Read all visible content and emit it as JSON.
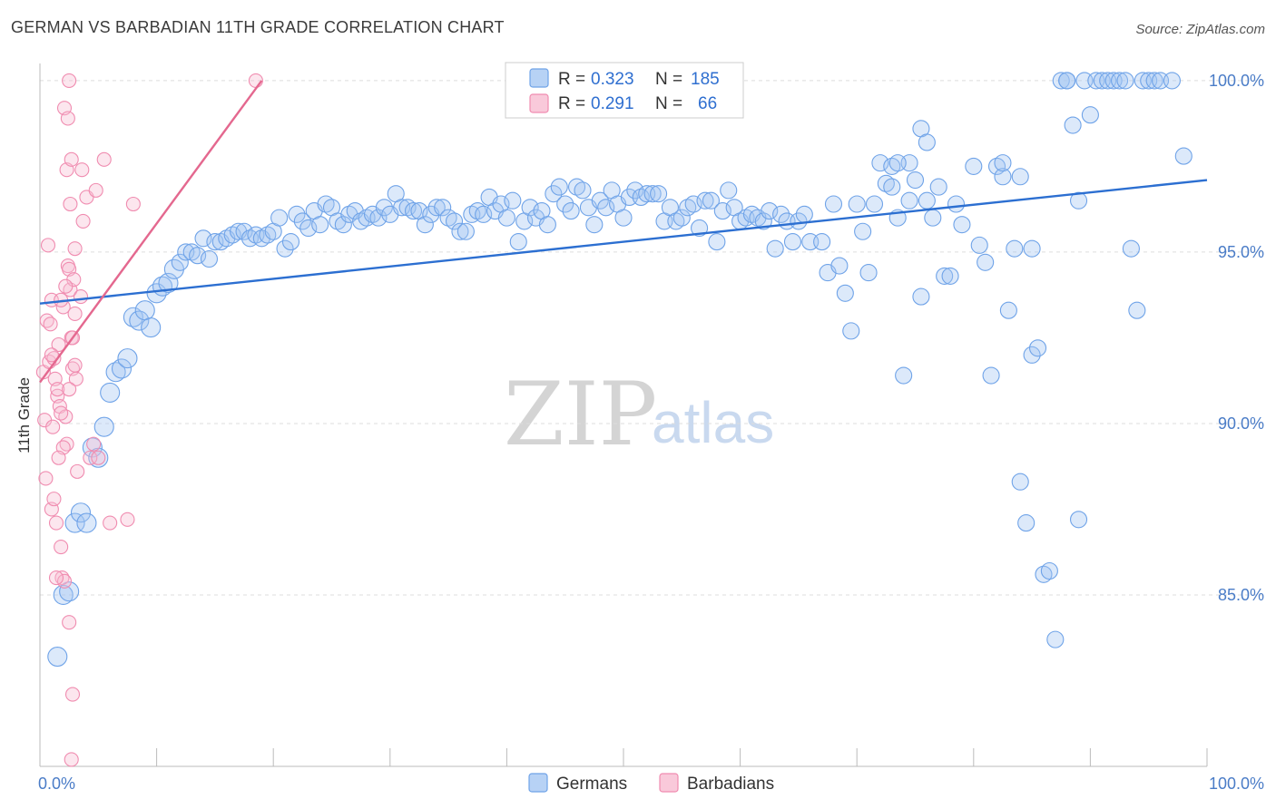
{
  "title": "GERMAN VS BARBADIAN 11TH GRADE CORRELATION CHART",
  "source": "Source: ZipAtlas.com",
  "watermark": {
    "zip": "ZIP",
    "atlas": "atlas"
  },
  "legend_top": [
    {
      "series": "Germans",
      "r_label": "R =",
      "r": "0.323",
      "n_label": "N =",
      "n": "185",
      "color": "#6fa3e8"
    },
    {
      "series": "Barbadians",
      "r_label": "R =",
      "r": "0.291",
      "n_label": "N =",
      "n": "66",
      "color": "#f08cb0"
    }
  ],
  "chart_data": {
    "type": "scatter",
    "title": "GERMAN VS BARBADIAN 11TH GRADE CORRELATION CHART",
    "xlabel": "",
    "ylabel": "11th Grade",
    "xlim": [
      0,
      100
    ],
    "ylim": [
      80.0,
      100.5
    ],
    "x_tick_labels": [
      "0.0%",
      "100.0%"
    ],
    "y_ticks": [
      85.0,
      90.0,
      95.0,
      100.0
    ],
    "y_tick_labels": [
      "85.0%",
      "90.0%",
      "95.0%",
      "100.0%"
    ],
    "grid": "horizontal dashed",
    "legend_position": "top-center",
    "series": [
      {
        "name": "Germans",
        "color": "#6fa3e8",
        "trend": {
          "x": [
            0,
            100
          ],
          "y": [
            93.5,
            97.1
          ]
        },
        "points": [
          [
            1.5,
            83.2
          ],
          [
            2,
            85.0
          ],
          [
            2.5,
            85.1
          ],
          [
            3,
            87.1
          ],
          [
            3.5,
            87.4
          ],
          [
            4,
            87.1
          ],
          [
            4.5,
            89.3
          ],
          [
            5,
            89.0
          ],
          [
            5.5,
            89.9
          ],
          [
            6,
            90.9
          ],
          [
            6.5,
            91.5
          ],
          [
            7,
            91.6
          ],
          [
            7.5,
            91.9
          ],
          [
            8,
            93.1
          ],
          [
            8.5,
            93.0
          ],
          [
            9,
            93.3
          ],
          [
            9.5,
            92.8
          ],
          [
            10,
            93.8
          ],
          [
            10.5,
            94.0
          ],
          [
            11,
            94.1
          ],
          [
            11.5,
            94.5
          ],
          [
            12,
            94.7
          ],
          [
            12.5,
            95.0
          ],
          [
            13,
            95.0
          ],
          [
            13.5,
            94.9
          ],
          [
            14,
            95.4
          ],
          [
            14.5,
            94.8
          ],
          [
            15,
            95.3
          ],
          [
            15.5,
            95.3
          ],
          [
            16,
            95.4
          ],
          [
            16.5,
            95.5
          ],
          [
            17,
            95.6
          ],
          [
            17.5,
            95.6
          ],
          [
            18,
            95.4
          ],
          [
            18.5,
            95.5
          ],
          [
            19,
            95.4
          ],
          [
            19.5,
            95.5
          ],
          [
            20,
            95.6
          ],
          [
            20.5,
            96.0
          ],
          [
            21,
            95.1
          ],
          [
            21.5,
            95.3
          ],
          [
            22,
            96.1
          ],
          [
            22.5,
            95.9
          ],
          [
            23,
            95.7
          ],
          [
            23.5,
            96.2
          ],
          [
            24,
            95.8
          ],
          [
            24.5,
            96.4
          ],
          [
            25,
            96.3
          ],
          [
            25.5,
            95.9
          ],
          [
            26,
            95.8
          ],
          [
            26.5,
            96.1
          ],
          [
            27,
            96.2
          ],
          [
            27.5,
            95.9
          ],
          [
            28,
            96.0
          ],
          [
            28.5,
            96.1
          ],
          [
            29,
            96.0
          ],
          [
            29.5,
            96.3
          ],
          [
            30,
            96.1
          ],
          [
            30.5,
            96.7
          ],
          [
            31,
            96.3
          ],
          [
            31.5,
            96.3
          ],
          [
            32,
            96.2
          ],
          [
            32.5,
            96.2
          ],
          [
            33,
            95.8
          ],
          [
            33.5,
            96.1
          ],
          [
            34,
            96.3
          ],
          [
            34.5,
            96.3
          ],
          [
            35,
            96.0
          ],
          [
            35.5,
            95.9
          ],
          [
            36,
            95.6
          ],
          [
            36.5,
            95.6
          ],
          [
            37,
            96.1
          ],
          [
            37.5,
            96.2
          ],
          [
            38,
            96.1
          ],
          [
            38.5,
            96.6
          ],
          [
            39,
            96.2
          ],
          [
            39.5,
            96.4
          ],
          [
            40,
            96.0
          ],
          [
            40.5,
            96.5
          ],
          [
            41,
            95.3
          ],
          [
            41.5,
            95.9
          ],
          [
            42,
            96.3
          ],
          [
            42.5,
            96.0
          ],
          [
            43,
            96.2
          ],
          [
            43.5,
            95.8
          ],
          [
            44,
            96.7
          ],
          [
            44.5,
            96.9
          ],
          [
            45,
            96.4
          ],
          [
            45.5,
            96.2
          ],
          [
            46,
            96.9
          ],
          [
            46.5,
            96.8
          ],
          [
            47,
            96.3
          ],
          [
            47.5,
            95.8
          ],
          [
            48,
            96.5
          ],
          [
            48.5,
            96.3
          ],
          [
            49,
            96.8
          ],
          [
            49.5,
            96.4
          ],
          [
            50,
            96.0
          ],
          [
            50.5,
            96.6
          ],
          [
            51,
            96.8
          ],
          [
            51.5,
            96.6
          ],
          [
            52,
            96.7
          ],
          [
            52.5,
            96.7
          ],
          [
            53,
            96.7
          ],
          [
            53.5,
            95.9
          ],
          [
            54,
            96.3
          ],
          [
            54.5,
            95.9
          ],
          [
            55,
            96.0
          ],
          [
            55.5,
            96.3
          ],
          [
            56,
            96.4
          ],
          [
            56.5,
            95.7
          ],
          [
            57,
            96.5
          ],
          [
            57.5,
            96.5
          ],
          [
            58,
            95.3
          ],
          [
            58.5,
            96.2
          ],
          [
            59,
            96.8
          ],
          [
            59.5,
            96.3
          ],
          [
            60,
            95.9
          ],
          [
            60.5,
            96.0
          ],
          [
            61,
            96.1
          ],
          [
            61.5,
            96.0
          ],
          [
            62,
            95.9
          ],
          [
            62.5,
            96.2
          ],
          [
            63,
            95.1
          ],
          [
            63.5,
            96.1
          ],
          [
            64,
            95.9
          ],
          [
            64.5,
            95.3
          ],
          [
            65,
            95.9
          ],
          [
            65.5,
            96.1
          ],
          [
            66,
            95.3
          ],
          [
            67,
            95.3
          ],
          [
            67.5,
            94.4
          ],
          [
            68,
            96.4
          ],
          [
            68.5,
            94.6
          ],
          [
            69,
            93.8
          ],
          [
            69.5,
            92.7
          ],
          [
            70,
            96.4
          ],
          [
            70.5,
            95.6
          ],
          [
            71,
            94.4
          ],
          [
            71.5,
            96.4
          ],
          [
            72,
            97.6
          ],
          [
            72.5,
            97.0
          ],
          [
            73,
            96.9
          ],
          [
            73.5,
            96.0
          ],
          [
            74,
            91.4
          ],
          [
            74.5,
            96.5
          ],
          [
            75,
            97.1
          ],
          [
            75.5,
            93.7
          ],
          [
            76,
            96.5
          ],
          [
            76.5,
            96.0
          ],
          [
            77,
            96.9
          ],
          [
            77.5,
            94.3
          ],
          [
            78,
            94.3
          ],
          [
            78.5,
            96.4
          ],
          [
            79,
            95.8
          ],
          [
            80,
            97.5
          ],
          [
            80.5,
            95.2
          ],
          [
            81,
            94.7
          ],
          [
            81.5,
            91.4
          ],
          [
            82,
            97.5
          ],
          [
            82.5,
            97.2
          ],
          [
            83,
            93.3
          ],
          [
            83.5,
            95.1
          ],
          [
            84,
            88.3
          ],
          [
            84.5,
            87.1
          ],
          [
            85,
            92.0
          ],
          [
            85.5,
            92.2
          ],
          [
            86,
            85.6
          ],
          [
            86.5,
            85.7
          ],
          [
            87,
            83.7
          ],
          [
            87.5,
            100.0
          ],
          [
            88,
            100.0
          ],
          [
            88.5,
            98.7
          ],
          [
            89,
            96.5
          ],
          [
            89.5,
            100.0
          ],
          [
            90,
            99.0
          ],
          [
            90.5,
            100.0
          ],
          [
            91,
            100.0
          ],
          [
            91.5,
            100.0
          ],
          [
            92,
            100.0
          ],
          [
            92.5,
            100.0
          ],
          [
            93,
            100.0
          ],
          [
            93.5,
            95.1
          ],
          [
            94,
            93.3
          ],
          [
            94.5,
            100.0
          ],
          [
            95,
            100.0
          ],
          [
            95.5,
            100.0
          ],
          [
            96,
            100.0
          ],
          [
            97,
            100.0
          ],
          [
            98,
            97.8
          ],
          [
            75.5,
            98.6
          ],
          [
            76,
            98.2
          ],
          [
            74.5,
            97.6
          ],
          [
            73,
            97.5
          ],
          [
            73.5,
            97.6
          ],
          [
            82.5,
            97.6
          ],
          [
            84,
            97.2
          ],
          [
            88,
            100.0
          ],
          [
            89,
            87.2
          ],
          [
            85,
            95.1
          ]
        ]
      },
      {
        "name": "Barbadians",
        "color": "#f08cb0",
        "trend": {
          "x": [
            0,
            19
          ],
          "y": [
            91.2,
            100.0
          ]
        },
        "points": [
          [
            0.3,
            91.5
          ],
          [
            0.4,
            90.1
          ],
          [
            0.5,
            88.4
          ],
          [
            0.6,
            93.0
          ],
          [
            0.7,
            95.2
          ],
          [
            0.8,
            91.8
          ],
          [
            0.9,
            92.9
          ],
          [
            1.0,
            93.6
          ],
          [
            1.1,
            89.9
          ],
          [
            1.2,
            91.9
          ],
          [
            1.3,
            91.3
          ],
          [
            1.4,
            87.1
          ],
          [
            1.5,
            90.8
          ],
          [
            1.6,
            92.3
          ],
          [
            1.7,
            90.5
          ],
          [
            1.8,
            86.4
          ],
          [
            1.9,
            85.5
          ],
          [
            2.0,
            93.4
          ],
          [
            2.1,
            85.4
          ],
          [
            2.2,
            90.2
          ],
          [
            1.5,
            91.0
          ],
          [
            1.8,
            90.3
          ],
          [
            2.3,
            97.4
          ],
          [
            2.4,
            94.6
          ],
          [
            2.5,
            94.5
          ],
          [
            2.6,
            93.9
          ],
          [
            2.7,
            92.5
          ],
          [
            2.8,
            91.6
          ],
          [
            2.9,
            94.2
          ],
          [
            3.0,
            91.7
          ],
          [
            2.1,
            99.2
          ],
          [
            2.4,
            98.9
          ],
          [
            2.6,
            96.4
          ],
          [
            2.7,
            97.7
          ],
          [
            2.8,
            92.5
          ],
          [
            3.0,
            93.2
          ],
          [
            3.1,
            91.3
          ],
          [
            3.2,
            88.6
          ],
          [
            3.5,
            93.7
          ],
          [
            3.6,
            97.4
          ],
          [
            3.7,
            95.9
          ],
          [
            4.0,
            96.6
          ],
          [
            4.3,
            89.0
          ],
          [
            4.6,
            89.4
          ],
          [
            4.8,
            96.8
          ],
          [
            5.0,
            89.0
          ],
          [
            5.5,
            97.7
          ],
          [
            6.0,
            87.1
          ],
          [
            7.5,
            87.2
          ],
          [
            8.0,
            96.4
          ],
          [
            2.3,
            89.4
          ],
          [
            2.0,
            89.3
          ],
          [
            1.6,
            89.0
          ],
          [
            1.0,
            87.5
          ],
          [
            1.2,
            87.8
          ],
          [
            1.4,
            85.5
          ],
          [
            2.5,
            84.2
          ],
          [
            2.8,
            82.1
          ],
          [
            2.7,
            80.2
          ],
          [
            1.0,
            92.0
          ],
          [
            2.2,
            94.0
          ],
          [
            1.8,
            93.6
          ],
          [
            2.5,
            91.0
          ],
          [
            3.0,
            95.1
          ],
          [
            18.5,
            100.0
          ],
          [
            2.5,
            100.0
          ]
        ]
      }
    ]
  },
  "bottom_legend": [
    {
      "label": "Germans",
      "color": "#6fa3e8"
    },
    {
      "label": "Barbadians",
      "color": "#f08cb0"
    }
  ]
}
